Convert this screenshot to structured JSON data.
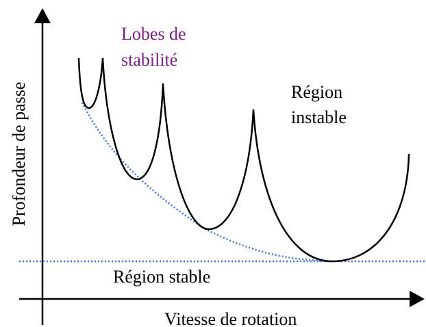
{
  "lobes_label": [
    "Lobes de",
    "stabilité"
  ],
  "unstable_label": [
    "Région",
    "instable"
  ],
  "stable_label": "Région stable",
  "y_axis_label": "Profondeur de passe",
  "x_axis_label": "Vitesse de rotation"
}
